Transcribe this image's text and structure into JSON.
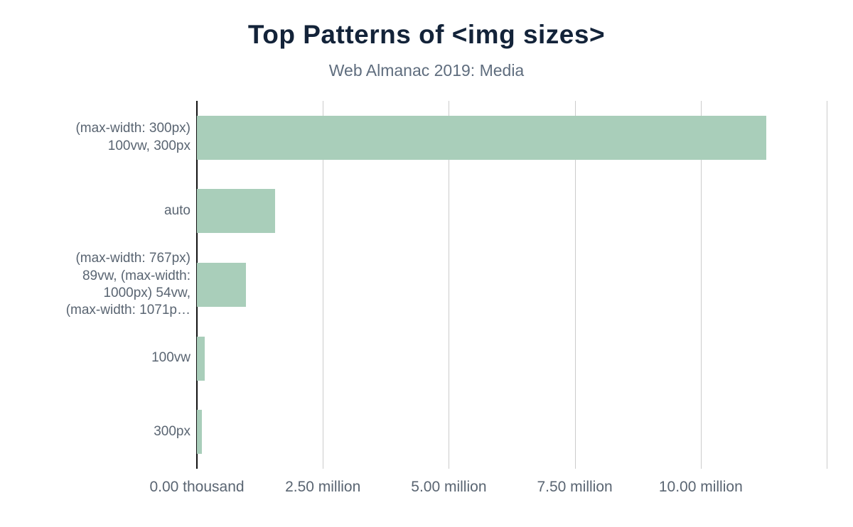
{
  "title": "Top Patterns of <img sizes>",
  "subtitle": "Web Almanac 2019: Media",
  "colors": {
    "bar": "#a9ceba",
    "title": "#132339",
    "subtitle": "#5f6d7e",
    "axis_text": "#5a6572",
    "gridline": "#cccccc",
    "axis_line": "#111111"
  },
  "chart_data": {
    "type": "bar",
    "orientation": "horizontal",
    "title": "Top Patterns of <img sizes>",
    "subtitle": "Web Almanac 2019: Media",
    "xlabel": "",
    "ylabel": "",
    "grid": true,
    "xlim": [
      0,
      12500000
    ],
    "categories": [
      {
        "label": "(max-width: 300px) 100vw, 300px",
        "lines": [
          "(max-width: 300px)",
          "100vw, 300px"
        ]
      },
      {
        "label": "auto",
        "lines": [
          "auto"
        ]
      },
      {
        "label": "(max-width: 767px) 89vw, (max-width: 1000px) 54vw, (max-width: 1071p…",
        "lines": [
          "(max-width: 767px)",
          "89vw, (max-width:",
          "1000px) 54vw,",
          "(max-width: 1071p…"
        ]
      },
      {
        "label": "100vw",
        "lines": [
          "100vw"
        ]
      },
      {
        "label": "300px",
        "lines": [
          "300px"
        ]
      }
    ],
    "values": [
      11300000,
      1550000,
      970000,
      160000,
      100000
    ],
    "gridline_values": [
      0,
      2500000,
      5000000,
      7500000,
      10000000,
      12500000
    ],
    "x_ticks": [
      {
        "label": "0.00 thousand",
        "value": 0
      },
      {
        "label": "2.50 million",
        "value": 2500000
      },
      {
        "label": "5.00 million",
        "value": 5000000
      },
      {
        "label": "7.50 million",
        "value": 7500000
      },
      {
        "label": "10.00 million",
        "value": 10000000
      }
    ]
  }
}
